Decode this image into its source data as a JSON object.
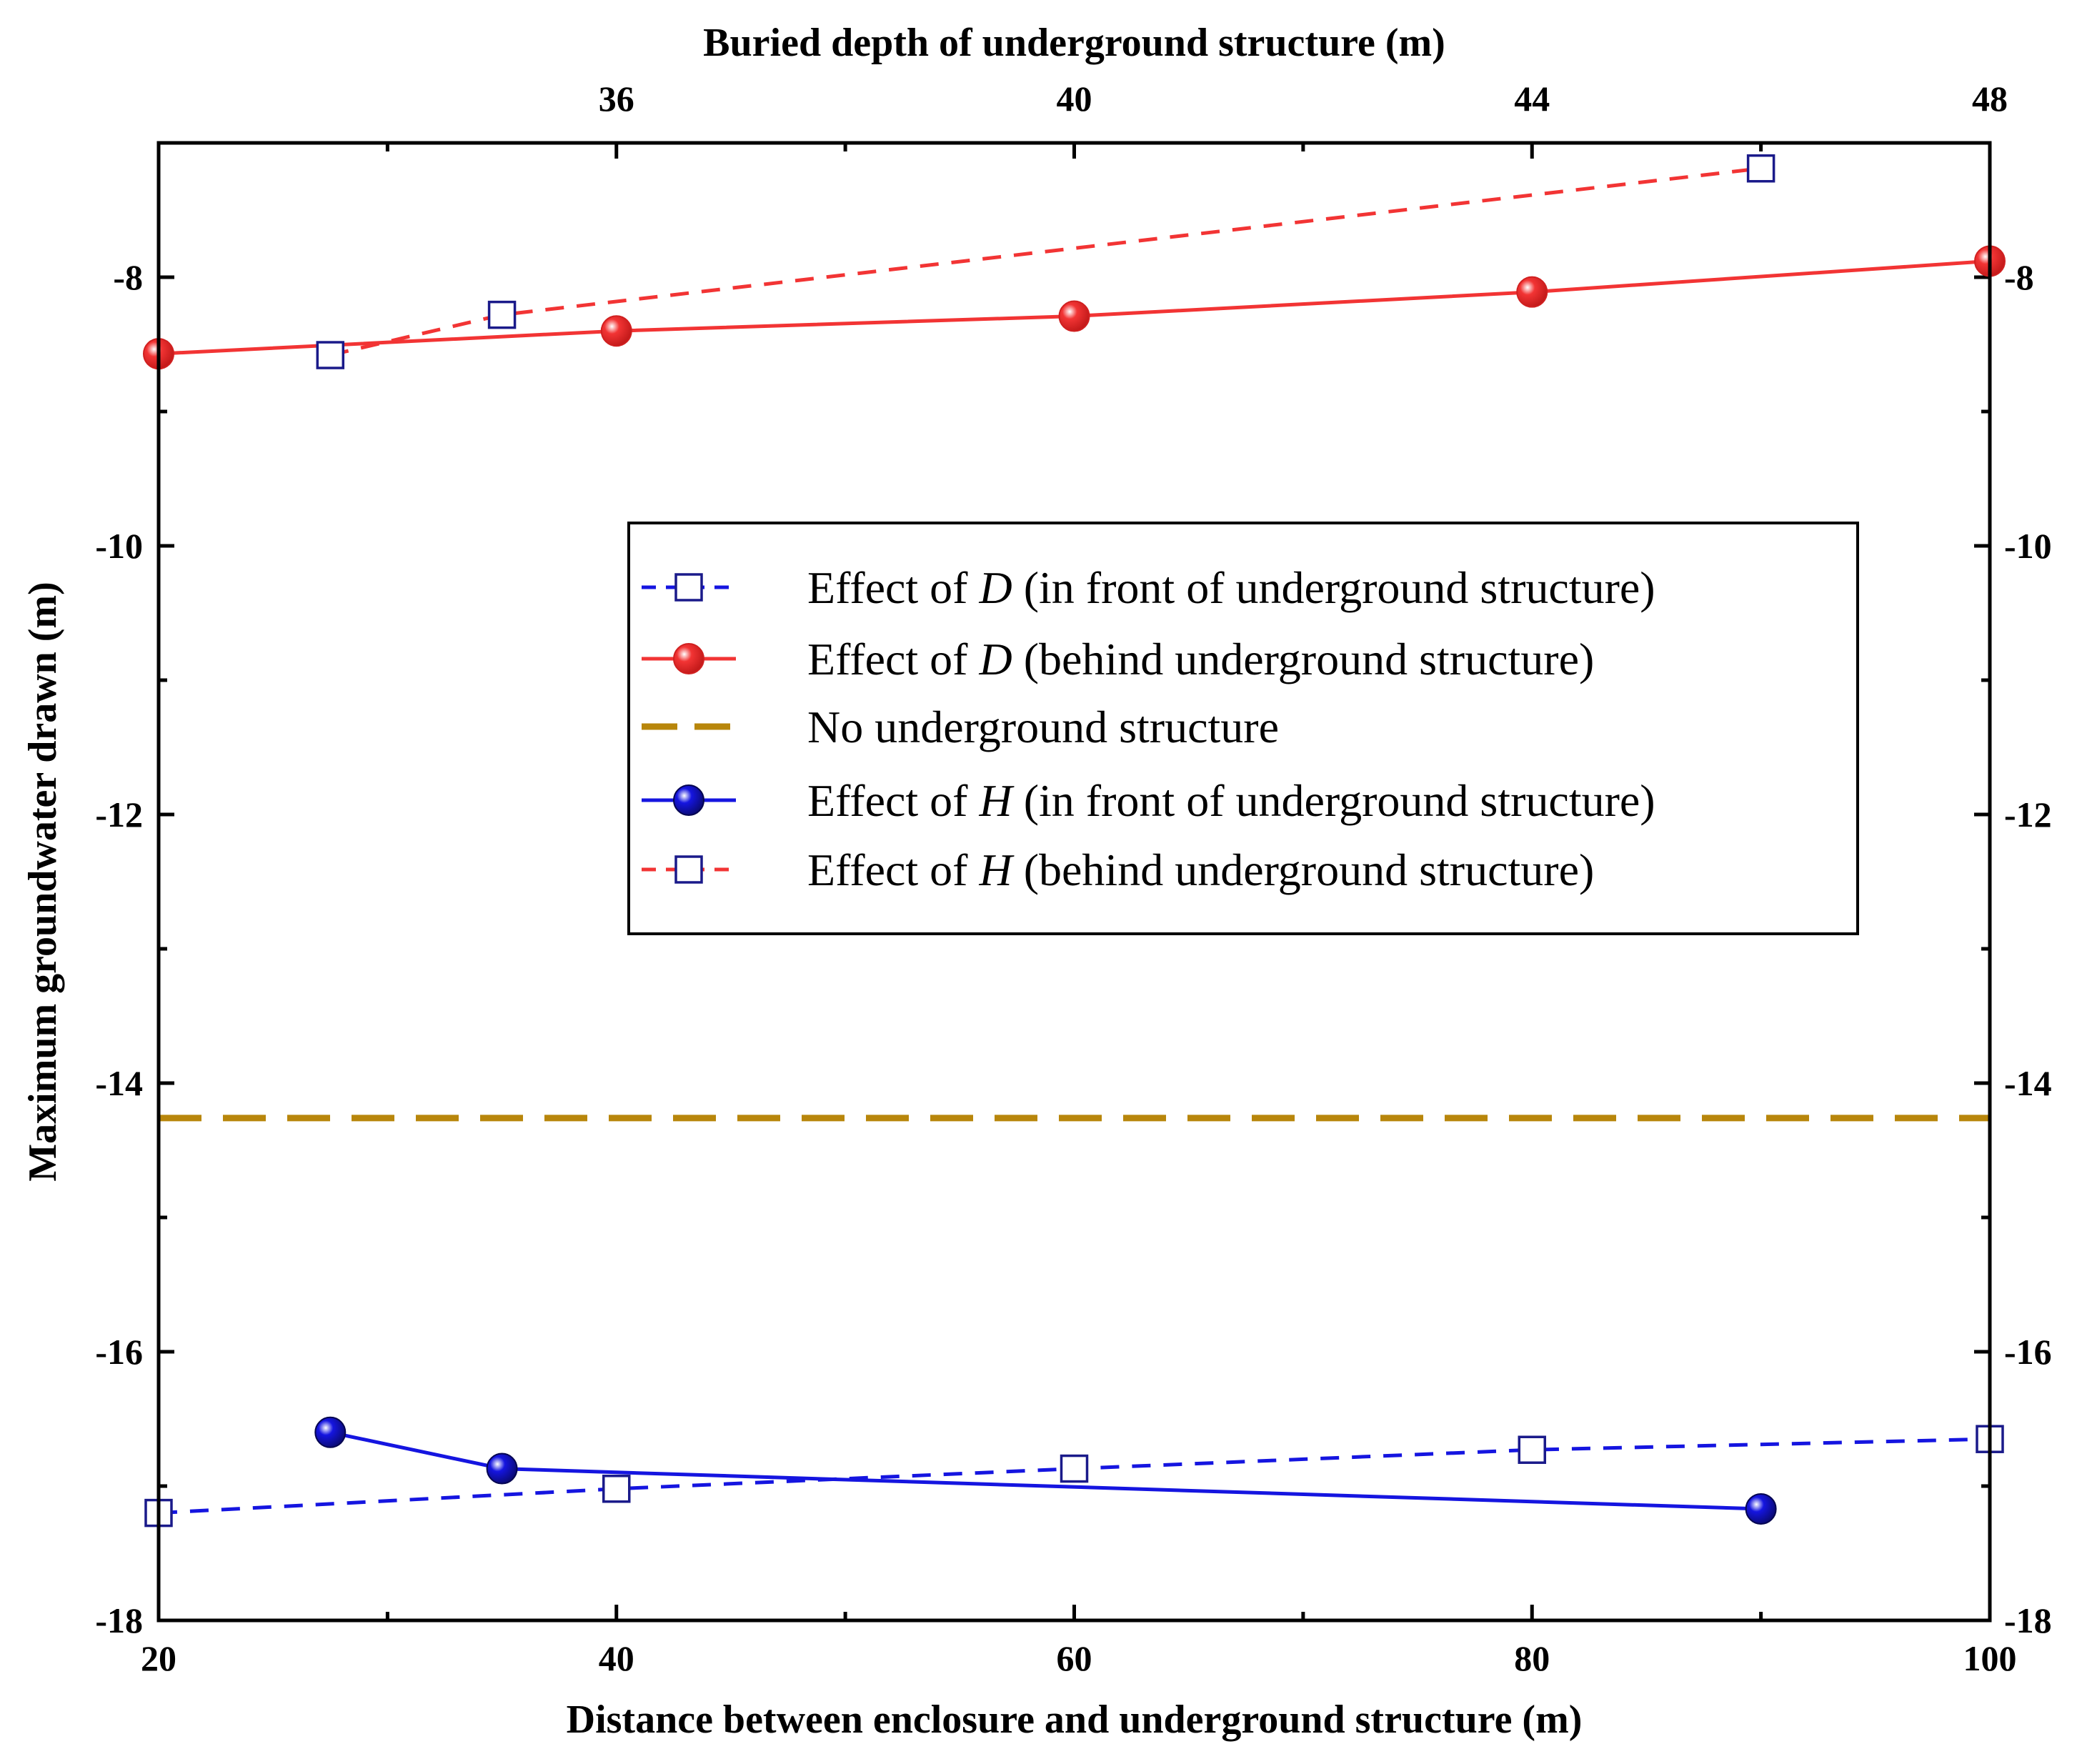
{
  "chart_data": {
    "type": "line",
    "xlabel": "Distance between  enclosure and underground structure (m)",
    "x2label": "Buried depth of underground structure (m)",
    "ylabel": "Maximum groundwater drawn (m)",
    "xlim": [
      20,
      100
    ],
    "x2lim": [
      32,
      48
    ],
    "ylim": [
      -18,
      -7
    ],
    "x_ticks": [
      "20",
      "40",
      "60",
      "80",
      "100"
    ],
    "x2_ticks": [
      "36",
      "40",
      "44",
      "48"
    ],
    "y_ticks": [
      "-8",
      "-10",
      "-12",
      "-14",
      "-16",
      "-18"
    ],
    "legend_position": "center-right",
    "series": [
      {
        "name_prefix": "Effect of ",
        "name_var": "D",
        "name_suffix": " (in front of underground structure)",
        "axis": "bottom",
        "color": "#1515e0",
        "line": "dashed",
        "marker": "open-square",
        "x": [
          20,
          40,
          60,
          80,
          100
        ],
        "y": [
          -17.2,
          -17.02,
          -16.87,
          -16.73,
          -16.65
        ]
      },
      {
        "name_prefix": "Effect of ",
        "name_var": "D",
        "name_suffix": " (behind underground structure)",
        "axis": "bottom",
        "color": "#f23434",
        "line": "solid",
        "marker": "filled-circle",
        "x": [
          20,
          40,
          60,
          80,
          100
        ],
        "y": [
          -8.57,
          -8.4,
          -8.29,
          -8.11,
          -7.88
        ]
      },
      {
        "name_prefix": "No underground structure",
        "name_var": "",
        "name_suffix": "",
        "axis": "bottom",
        "color": "#b8860b",
        "line": "long-dashed",
        "marker": "none",
        "x": [
          20,
          100
        ],
        "y": [
          -14.26,
          -14.26
        ]
      },
      {
        "name_prefix": "Effect of ",
        "name_var": "H",
        "name_suffix": " (in front of underground structure)",
        "axis": "top",
        "color": "#1515e0",
        "line": "solid",
        "marker": "filled-circle",
        "x": [
          33.5,
          35,
          46
        ],
        "y": [
          -16.6,
          -16.87,
          -17.17
        ]
      },
      {
        "name_prefix": "Effect of ",
        "name_var": "H",
        "name_suffix": " (behind underground structure)",
        "axis": "top",
        "color": "#f23434",
        "line": "dashed",
        "marker": "open-square",
        "x": [
          33.5,
          35,
          46
        ],
        "y": [
          -8.58,
          -8.28,
          -7.19
        ]
      }
    ]
  }
}
